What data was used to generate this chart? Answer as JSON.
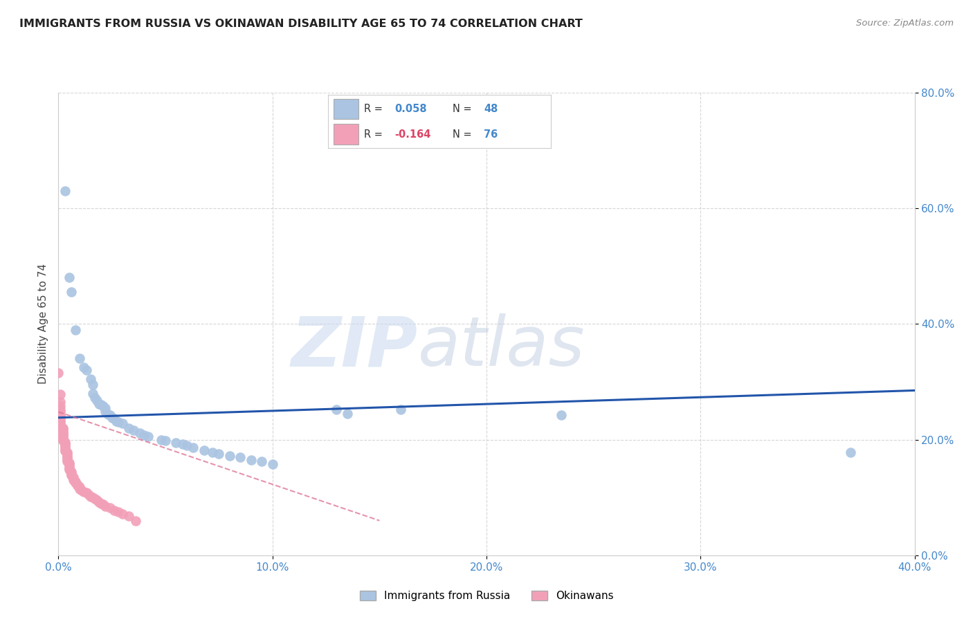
{
  "title": "IMMIGRANTS FROM RUSSIA VS OKINAWAN DISABILITY AGE 65 TO 74 CORRELATION CHART",
  "source": "Source: ZipAtlas.com",
  "ylabel": "Disability Age 65 to 74",
  "legend_blue_label": "Immigrants from Russia",
  "legend_pink_label": "Okinawans",
  "xlim": [
    0.0,
    0.4
  ],
  "ylim": [
    0.0,
    0.8
  ],
  "yticks": [
    0.0,
    0.2,
    0.4,
    0.6,
    0.8
  ],
  "xticks": [
    0.0,
    0.1,
    0.2,
    0.3,
    0.4
  ],
  "blue_color": "#aac4e2",
  "pink_color": "#f2a0b8",
  "blue_line_color": "#2255aa",
  "pink_line_color": "#dd7090",
  "background": "#ffffff",
  "watermark_zip": "ZIP",
  "watermark_atlas": "atlas",
  "blue_scatter": [
    [
      0.003,
      0.63
    ],
    [
      0.005,
      0.48
    ],
    [
      0.006,
      0.455
    ],
    [
      0.008,
      0.39
    ],
    [
      0.01,
      0.34
    ],
    [
      0.012,
      0.325
    ],
    [
      0.013,
      0.32
    ],
    [
      0.015,
      0.305
    ],
    [
      0.016,
      0.295
    ],
    [
      0.016,
      0.28
    ],
    [
      0.017,
      0.272
    ],
    [
      0.018,
      0.268
    ],
    [
      0.019,
      0.262
    ],
    [
      0.02,
      0.26
    ],
    [
      0.021,
      0.258
    ],
    [
      0.022,
      0.254
    ],
    [
      0.022,
      0.248
    ],
    [
      0.023,
      0.244
    ],
    [
      0.024,
      0.242
    ],
    [
      0.025,
      0.238
    ],
    [
      0.026,
      0.236
    ],
    [
      0.027,
      0.232
    ],
    [
      0.028,
      0.23
    ],
    [
      0.03,
      0.228
    ],
    [
      0.033,
      0.22
    ],
    [
      0.035,
      0.216
    ],
    [
      0.038,
      0.212
    ],
    [
      0.04,
      0.208
    ],
    [
      0.042,
      0.205
    ],
    [
      0.048,
      0.2
    ],
    [
      0.05,
      0.198
    ],
    [
      0.055,
      0.195
    ],
    [
      0.058,
      0.192
    ],
    [
      0.06,
      0.19
    ],
    [
      0.063,
      0.186
    ],
    [
      0.068,
      0.182
    ],
    [
      0.072,
      0.178
    ],
    [
      0.075,
      0.176
    ],
    [
      0.08,
      0.172
    ],
    [
      0.085,
      0.17
    ],
    [
      0.09,
      0.165
    ],
    [
      0.095,
      0.162
    ],
    [
      0.1,
      0.158
    ],
    [
      0.13,
      0.252
    ],
    [
      0.135,
      0.245
    ],
    [
      0.16,
      0.252
    ],
    [
      0.235,
      0.242
    ],
    [
      0.37,
      0.178
    ]
  ],
  "pink_scatter": [
    [
      0.0,
      0.315
    ],
    [
      0.001,
      0.278
    ],
    [
      0.001,
      0.265
    ],
    [
      0.001,
      0.258
    ],
    [
      0.001,
      0.252
    ],
    [
      0.001,
      0.248
    ],
    [
      0.001,
      0.244
    ],
    [
      0.001,
      0.24
    ],
    [
      0.001,
      0.238
    ],
    [
      0.001,
      0.234
    ],
    [
      0.001,
      0.232
    ],
    [
      0.001,
      0.228
    ],
    [
      0.001,
      0.226
    ],
    [
      0.001,
      0.222
    ],
    [
      0.002,
      0.22
    ],
    [
      0.002,
      0.218
    ],
    [
      0.002,
      0.215
    ],
    [
      0.002,
      0.212
    ],
    [
      0.002,
      0.21
    ],
    [
      0.002,
      0.208
    ],
    [
      0.002,
      0.205
    ],
    [
      0.002,
      0.202
    ],
    [
      0.002,
      0.2
    ],
    [
      0.002,
      0.198
    ],
    [
      0.003,
      0.196
    ],
    [
      0.003,
      0.194
    ],
    [
      0.003,
      0.192
    ],
    [
      0.003,
      0.19
    ],
    [
      0.003,
      0.188
    ],
    [
      0.003,
      0.185
    ],
    [
      0.003,
      0.182
    ],
    [
      0.003,
      0.18
    ],
    [
      0.004,
      0.178
    ],
    [
      0.004,
      0.175
    ],
    [
      0.004,
      0.172
    ],
    [
      0.004,
      0.17
    ],
    [
      0.004,
      0.168
    ],
    [
      0.004,
      0.165
    ],
    [
      0.004,
      0.162
    ],
    [
      0.005,
      0.16
    ],
    [
      0.005,
      0.158
    ],
    [
      0.005,
      0.155
    ],
    [
      0.005,
      0.152
    ],
    [
      0.005,
      0.15
    ],
    [
      0.005,
      0.148
    ],
    [
      0.006,
      0.145
    ],
    [
      0.006,
      0.142
    ],
    [
      0.006,
      0.14
    ],
    [
      0.006,
      0.138
    ],
    [
      0.007,
      0.135
    ],
    [
      0.007,
      0.132
    ],
    [
      0.007,
      0.13
    ],
    [
      0.008,
      0.128
    ],
    [
      0.008,
      0.125
    ],
    [
      0.009,
      0.122
    ],
    [
      0.009,
      0.12
    ],
    [
      0.01,
      0.118
    ],
    [
      0.01,
      0.115
    ],
    [
      0.011,
      0.112
    ],
    [
      0.012,
      0.11
    ],
    [
      0.013,
      0.108
    ],
    [
      0.014,
      0.105
    ],
    [
      0.015,
      0.102
    ],
    [
      0.016,
      0.1
    ],
    [
      0.017,
      0.098
    ],
    [
      0.018,
      0.095
    ],
    [
      0.019,
      0.092
    ],
    [
      0.02,
      0.09
    ],
    [
      0.021,
      0.088
    ],
    [
      0.022,
      0.085
    ],
    [
      0.024,
      0.082
    ],
    [
      0.026,
      0.078
    ],
    [
      0.028,
      0.075
    ],
    [
      0.03,
      0.072
    ],
    [
      0.033,
      0.068
    ],
    [
      0.036,
      0.06
    ]
  ],
  "blue_trendline_x": [
    0.0,
    0.4
  ],
  "blue_trendline_y": [
    0.238,
    0.285
  ],
  "pink_trendline_x": [
    0.0,
    0.15
  ],
  "pink_trendline_y": [
    0.248,
    0.06
  ]
}
